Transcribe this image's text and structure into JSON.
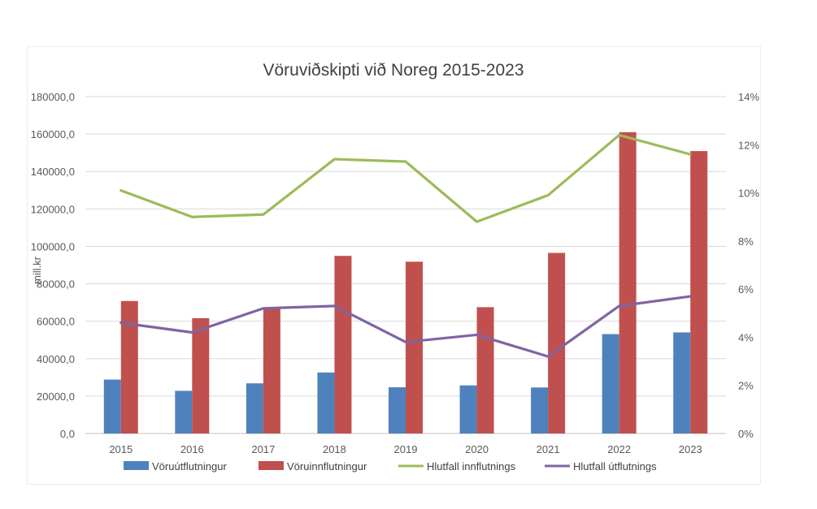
{
  "chart_data": {
    "type": "bar",
    "title": "Vöruviðskipti við Noreg 2015-2023",
    "ylabel": "mill.kr",
    "categories": [
      "2015",
      "2016",
      "2017",
      "2018",
      "2019",
      "2020",
      "2021",
      "2022",
      "2023"
    ],
    "ylim": [
      0,
      180000
    ],
    "y_ticks": [
      "0,0",
      "20000,0",
      "40000,0",
      "60000,0",
      "80000,0",
      "100000,0",
      "120000,0",
      "140000,0",
      "160000,0",
      "180000,0"
    ],
    "y2lim": [
      0,
      14
    ],
    "y2_ticks": [
      "0%",
      "2%",
      "4%",
      "6%",
      "8%",
      "10%",
      "12%",
      "14%"
    ],
    "grid": true,
    "legend_position": "bottom",
    "series": [
      {
        "name": "Vöruútflutningur",
        "type": "bar",
        "axis": "left",
        "color": "#4f81bd",
        "values": [
          28800,
          22800,
          26800,
          32600,
          24700,
          25700,
          24600,
          53100,
          54000
        ]
      },
      {
        "name": "Vöruinnflutningur",
        "type": "bar",
        "axis": "left",
        "color": "#c0504d",
        "values": [
          70800,
          61600,
          67000,
          94900,
          91800,
          67500,
          96500,
          161000,
          150900
        ]
      },
      {
        "name": "Hlutfall innflutnings",
        "type": "line",
        "axis": "right",
        "color": "#9bbb59",
        "values": [
          10.1,
          9.0,
          9.1,
          11.4,
          11.3,
          8.8,
          9.9,
          12.4,
          11.6
        ]
      },
      {
        "name": "Hlutfall útflutnings",
        "type": "line",
        "axis": "right",
        "color": "#8064a2",
        "values": [
          4.6,
          4.2,
          5.2,
          5.3,
          3.8,
          4.1,
          3.2,
          5.3,
          5.7
        ]
      }
    ]
  }
}
